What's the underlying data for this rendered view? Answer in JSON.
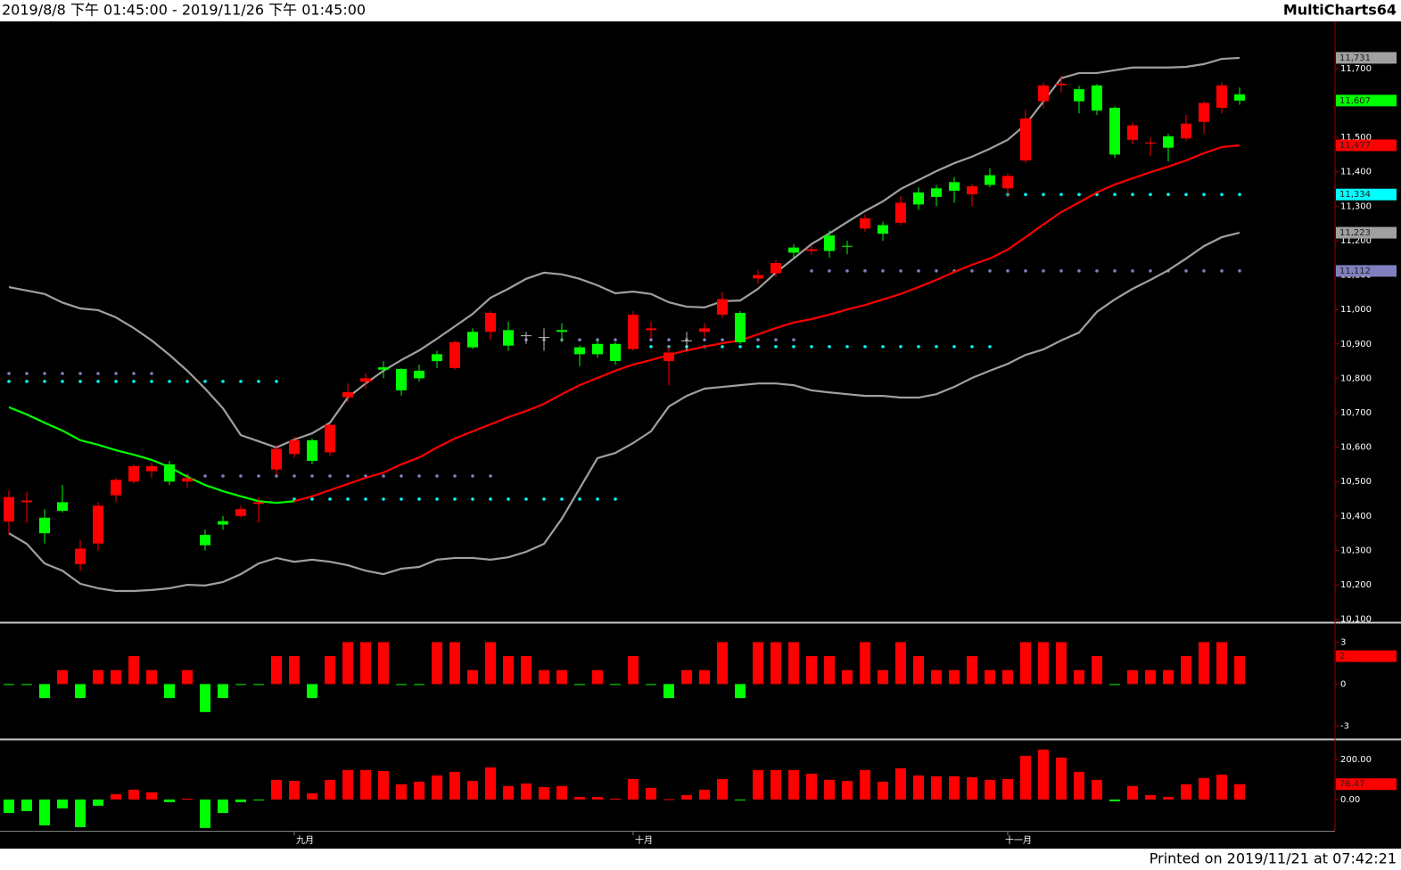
{
  "header": {
    "range": "2019/8/8 下午 01:45:00 - 2019/11/26 下午 01:45:00",
    "brand": "MultiCharts64"
  },
  "footer": "Printed on 2019/11/21 at 07:42:21",
  "chart_data": [
    {
      "type": "candlestick",
      "categories": [
        null,
        null,
        null,
        null,
        null,
        null,
        null,
        null,
        null,
        null,
        null,
        null,
        null,
        null,
        null,
        null,
        "九月",
        null,
        null,
        null,
        null,
        null,
        null,
        null,
        null,
        null,
        null,
        null,
        null,
        null,
        null,
        null,
        null,
        null,
        null,
        "十月",
        null,
        null,
        null,
        null,
        null,
        null,
        null,
        null,
        null,
        null,
        null,
        null,
        null,
        null,
        null,
        null,
        null,
        null,
        null,
        null,
        "十一月",
        null,
        null,
        null,
        null,
        null,
        null,
        null,
        null,
        null,
        null,
        null,
        null,
        null
      ],
      "open": [
        10384,
        10440,
        10395,
        10440,
        10260,
        10320,
        10460,
        10500,
        10530,
        10550,
        10500,
        10345,
        10385,
        10400,
        10435,
        10535,
        10580,
        10620,
        10585,
        10745,
        10790,
        10832,
        10827,
        10822,
        10870,
        10830,
        10935,
        10935,
        10940,
        10925,
        10920,
        10940,
        10890,
        10900,
        10900,
        10885,
        10940,
        10850,
        10910,
        10935,
        10985,
        10990,
        11090,
        11105,
        11180,
        11170,
        11215,
        11185,
        11235,
        11245,
        11252,
        11340,
        11352,
        11370,
        11335,
        11390,
        11352,
        11433,
        11605,
        11652,
        11640,
        11651,
        11586,
        11493,
        11482,
        11503,
        11497,
        11545,
        11586,
        11625
      ],
      "high": [
        10475,
        10470,
        10420,
        10490,
        10330,
        10440,
        10510,
        10550,
        10555,
        10560,
        10520,
        10360,
        10400,
        10430,
        10455,
        10605,
        10630,
        10625,
        10670,
        10785,
        10815,
        10850,
        10830,
        10840,
        10880,
        10910,
        10945,
        10995,
        10965,
        10935,
        10945,
        10960,
        10895,
        10915,
        10905,
        10995,
        10965,
        10895,
        10935,
        10960,
        11050,
        10995,
        11115,
        11145,
        11190,
        11185,
        11230,
        11200,
        11275,
        11255,
        11330,
        11355,
        11360,
        11385,
        11365,
        11410,
        11395,
        11580,
        11660,
        11680,
        11650,
        11655,
        11590,
        11545,
        11500,
        11510,
        11565,
        11605,
        11660,
        11645
      ],
      "low": [
        10345,
        10380,
        10320,
        10410,
        10240,
        10300,
        10440,
        10495,
        10510,
        10490,
        10480,
        10300,
        10360,
        10395,
        10380,
        10520,
        10570,
        10550,
        10575,
        10730,
        10770,
        10800,
        10750,
        10790,
        10830,
        10825,
        10885,
        10910,
        10880,
        10900,
        10880,
        10905,
        10835,
        10860,
        10840,
        10880,
        10915,
        10780,
        10880,
        10920,
        10975,
        10900,
        11075,
        11095,
        11150,
        11160,
        11150,
        11160,
        11225,
        11200,
        11245,
        11290,
        11300,
        11310,
        11300,
        11355,
        11325,
        11425,
        11585,
        11630,
        11570,
        11565,
        11440,
        11480,
        11445,
        11430,
        11490,
        11510,
        11570,
        11595
      ],
      "close": [
        10455,
        10445,
        10350,
        10415,
        10305,
        10430,
        10505,
        10545,
        10545,
        10500,
        10510,
        10315,
        10375,
        10420,
        10440,
        10595,
        10620,
        10560,
        10665,
        10760,
        10800,
        10825,
        10765,
        10800,
        10850,
        10905,
        10890,
        10990,
        10895,
        10925,
        10920,
        10935,
        10870,
        10870,
        10850,
        10985,
        10945,
        10875,
        10910,
        10945,
        11030,
        10905,
        11100,
        11135,
        11165,
        11175,
        11170,
        11183,
        11265,
        11220,
        11310,
        11305,
        11327,
        11345,
        11358,
        11362,
        11388,
        11555,
        11651,
        11656,
        11605,
        11578,
        11450,
        11535,
        11485,
        11470,
        11540,
        11600,
        11651,
        11607
      ],
      "up_color": "#ff0000",
      "down_color": "#00ff00",
      "flat_color": "#c0c0c0",
      "lines": [
        {
          "color": "#a0a0a0",
          "values": [
            11065,
            11055,
            11045,
            11020,
            11003,
            10998,
            10977,
            10946,
            10910,
            10868,
            10822,
            10770,
            10713,
            10635,
            10617,
            10599,
            10622,
            10640,
            10671,
            10744,
            10785,
            10822,
            10853,
            10881,
            10915,
            10951,
            10987,
            11034,
            11060,
            11089,
            11107,
            11102,
            11089,
            11070,
            11047,
            11052,
            11045,
            11021,
            11008,
            11006,
            11024,
            11026,
            11060,
            11107,
            11148,
            11190,
            11221,
            11254,
            11286,
            11314,
            11350,
            11376,
            11402,
            11425,
            11444,
            11467,
            11493,
            11537,
            11604,
            11672,
            11687,
            11687,
            11695,
            11703,
            11703,
            11703,
            11705,
            11713,
            11728,
            11731
          ]
        },
        {
          "color": "#a0a0a0",
          "values": [
            10350,
            10319,
            10262,
            10241,
            10203,
            10190,
            10182,
            10182,
            10185,
            10190,
            10200,
            10198,
            10208,
            10231,
            10262,
            10278,
            10267,
            10273,
            10267,
            10257,
            10241,
            10231,
            10247,
            10252,
            10273,
            10278,
            10278,
            10273,
            10280,
            10296,
            10319,
            10392,
            10480,
            10568,
            10583,
            10612,
            10646,
            10718,
            10749,
            10770,
            10775,
            10780,
            10785,
            10785,
            10780,
            10765,
            10759,
            10754,
            10749,
            10749,
            10744,
            10744,
            10754,
            10775,
            10801,
            10822,
            10842,
            10868,
            10884,
            10910,
            10933,
            10993,
            11029,
            11060,
            11086,
            11114,
            11148,
            11184,
            11210,
            11223
          ]
        },
        {
          "color": "#00ff00",
          "values": [
            10716,
            10695,
            10671,
            10648,
            10620,
            10607,
            10591,
            10578,
            10563,
            10542,
            10514,
            10490,
            10472,
            10457,
            10443,
            10438,
            10443,
            null,
            null,
            null,
            null,
            null,
            null,
            null,
            null,
            null,
            null,
            null,
            null,
            null,
            null,
            null,
            null,
            null,
            null,
            null,
            null,
            null,
            null,
            null,
            null,
            null,
            null,
            null,
            null,
            null,
            null,
            null,
            null,
            null,
            null,
            null,
            null,
            null,
            null,
            null,
            null,
            null,
            null,
            null,
            null,
            null,
            null,
            null,
            null,
            null,
            null,
            null,
            null,
            null
          ]
        },
        {
          "color": "#ff0000",
          "values": [
            null,
            null,
            null,
            null,
            null,
            null,
            null,
            null,
            null,
            null,
            null,
            null,
            null,
            null,
            null,
            null,
            10443,
            10457,
            10475,
            10493,
            10511,
            10526,
            10550,
            10570,
            10599,
            10625,
            10646,
            10666,
            10687,
            10705,
            10726,
            10754,
            10780,
            10801,
            10822,
            10840,
            10853,
            10868,
            10881,
            10892,
            10902,
            10910,
            10928,
            10946,
            10962,
            10972,
            10985,
            11000,
            11013,
            11029,
            11045,
            11065,
            11086,
            11109,
            11130,
            11148,
            11174,
            11210,
            11247,
            11283,
            11311,
            11340,
            11363,
            11381,
            11399,
            11415,
            11433,
            11454,
            11472,
            11477
          ]
        }
      ],
      "levels": [
        {
          "value": 10814,
          "from": 0,
          "to": 8,
          "color": "#8080c0"
        },
        {
          "value": 10791,
          "from": 0,
          "to": 15,
          "color": "#00ffff"
        },
        {
          "value": 10516,
          "from": 9,
          "to": 27,
          "color": "#8080c0"
        },
        {
          "value": 10449,
          "from": 16,
          "to": 34,
          "color": "#00ffff"
        },
        {
          "value": 10912,
          "from": 28,
          "to": 44,
          "color": "#8080c0"
        },
        {
          "value": 10892,
          "from": 35,
          "to": 55,
          "color": "#00ffff"
        },
        {
          "value": 11112,
          "from": 45,
          "to": 69,
          "color": "#8080c0"
        },
        {
          "value": 11334,
          "from": 56,
          "to": 69,
          "color": "#00ffff"
        }
      ],
      "ylim": [
        10094,
        11837
      ],
      "yticks": [
        {
          "value": 10100,
          "label": "10,100"
        },
        {
          "value": 10200,
          "label": "10,200"
        },
        {
          "value": 10300,
          "label": "10,300"
        },
        {
          "value": 10400,
          "label": "10,400"
        },
        {
          "value": 10500,
          "label": "10,500"
        },
        {
          "value": 10600,
          "label": "10,600"
        },
        {
          "value": 10700,
          "label": "10,700"
        },
        {
          "value": 10800,
          "label": "10,800"
        },
        {
          "value": 10900,
          "label": "10,900"
        },
        {
          "value": 11000,
          "label": "11,000"
        },
        {
          "value": 11100,
          "label": "11,100"
        },
        {
          "value": 11200,
          "label": "11,200"
        },
        {
          "value": 11300,
          "label": "11,300"
        },
        {
          "value": 11400,
          "label": "11,400"
        },
        {
          "value": 11500,
          "label": "11,500"
        },
        {
          "value": 11600,
          "label": "11,600"
        },
        {
          "value": 11700,
          "label": "11,700"
        }
      ],
      "last_values": [
        {
          "value": 11731,
          "label": "11,731",
          "color": "#a0a0a0"
        },
        {
          "value": 11607,
          "label": "11,607",
          "color": "#00ff00"
        },
        {
          "value": 11477,
          "label": "11,477",
          "color": "#ff0000"
        },
        {
          "value": 11334,
          "label": "11,334",
          "color": "#00ffff"
        },
        {
          "value": 11223,
          "label": "11,223",
          "color": "#a0a0a0"
        },
        {
          "value": 11112,
          "label": "11,112",
          "color": "#8080c0"
        }
      ]
    },
    {
      "type": "bar",
      "values": [
        0,
        0,
        -1,
        1,
        -1,
        1,
        1,
        2,
        1,
        -1,
        1,
        -2,
        -1,
        0,
        0,
        2,
        2,
        -1,
        2,
        3,
        3,
        3,
        0,
        0,
        3,
        3,
        1,
        3,
        2,
        2,
        1,
        1,
        0,
        1,
        0,
        2,
        0,
        -1,
        1,
        1,
        3,
        -1,
        3,
        3,
        3,
        2,
        2,
        1,
        3,
        1,
        3,
        2,
        1,
        1,
        2,
        1,
        1,
        3,
        3,
        3,
        1,
        2,
        0,
        1,
        1,
        1,
        2,
        3,
        3,
        2
      ],
      "up_color": "#ff0000",
      "down_color": "#00ff00",
      "ylim": [
        -3.8,
        4.3
      ],
      "yticks": [
        3,
        0,
        -3
      ],
      "last_values": [
        {
          "value": 2,
          "label": "2",
          "color": "#ff0000"
        }
      ]
    },
    {
      "type": "bar",
      "values": [
        -67,
        -58,
        -129,
        -44,
        -138,
        -31,
        27,
        49,
        36,
        -13,
        4,
        -142,
        -67,
        -13,
        -4,
        98,
        93,
        31,
        98,
        147,
        147,
        142,
        76,
        89,
        120,
        138,
        93,
        160,
        67,
        80,
        62,
        67,
        13,
        13,
        4,
        102,
        58,
        2,
        22,
        49,
        102,
        -4,
        147,
        147,
        147,
        129,
        98,
        93,
        147,
        89,
        156,
        120,
        116,
        116,
        111,
        98,
        102,
        218,
        249,
        209,
        138,
        98,
        -9,
        67,
        22,
        13,
        76,
        107,
        124,
        76.47
      ],
      "up_color": "#ff0000",
      "down_color": "#00ff00",
      "ylim": [
        -156,
        293
      ],
      "yticks": [
        {
          "value": 200,
          "label": "200.00"
        },
        {
          "value": 0,
          "label": "0.00"
        }
      ],
      "last_values": [
        {
          "value": 76.47,
          "label": "76.47",
          "color": "#ff0000"
        }
      ]
    }
  ]
}
